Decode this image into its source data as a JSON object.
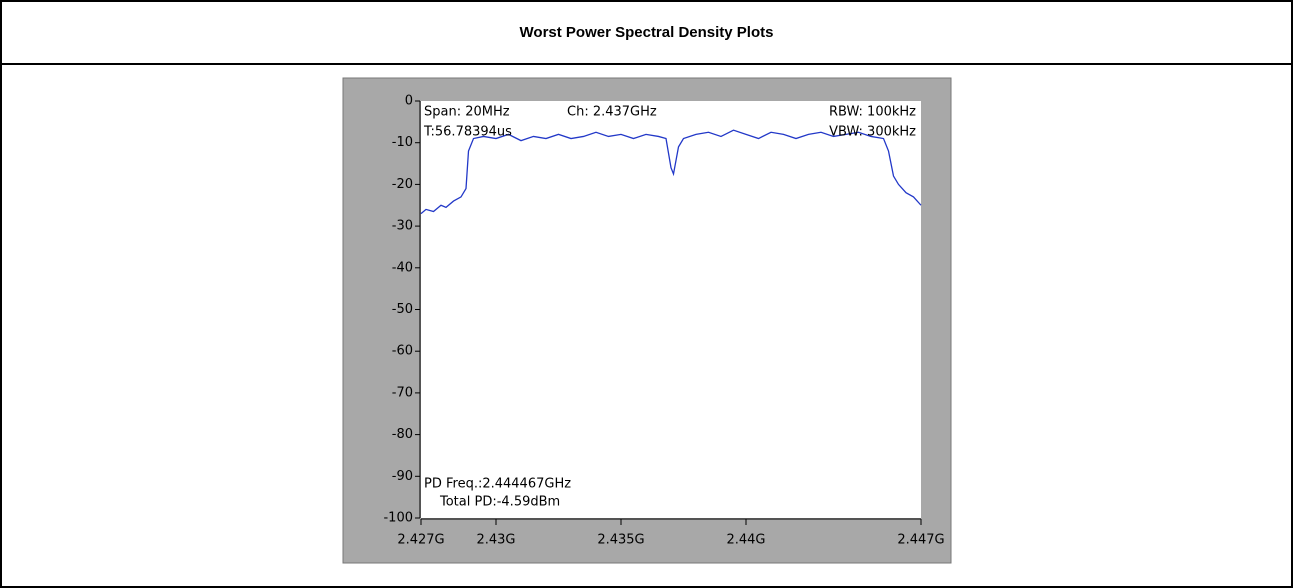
{
  "chart_data": {
    "type": "line",
    "title": "Worst Power Spectral Density Plots",
    "annotations": [
      "Span: 20MHz",
      "Ch: 2.437GHz",
      "RBW: 100kHz",
      "T:56.78394us",
      "VBW: 300kHz",
      "PD Freq.:2.444467GHz",
      "Total PD:-4.59dBm"
    ],
    "x": [
      2.427,
      2.4272,
      2.4275,
      2.4278,
      2.428,
      2.4283,
      2.4286,
      2.4288,
      2.4289,
      2.4291,
      2.4295,
      2.43,
      2.4305,
      2.431,
      2.4315,
      2.432,
      2.4325,
      2.433,
      2.4335,
      2.434,
      2.4345,
      2.435,
      2.4355,
      2.436,
      2.4365,
      2.4368,
      2.437,
      2.4371,
      2.4373,
      2.4375,
      2.438,
      2.4385,
      2.439,
      2.4395,
      2.44,
      2.4405,
      2.441,
      2.4415,
      2.442,
      2.4425,
      2.443,
      2.4435,
      2.444,
      2.4445,
      2.445,
      2.4455,
      2.4457,
      2.4459,
      2.4461,
      2.4464,
      2.4467,
      2.447
    ],
    "values": [
      -27,
      -26,
      -26.5,
      -25,
      -25.5,
      -24,
      -23,
      -21,
      -12,
      -9,
      -8.5,
      -9,
      -8,
      -9.5,
      -8.5,
      -9,
      -8,
      -9,
      -8.5,
      -7.5,
      -8.5,
      -8,
      -9,
      -8,
      -8.5,
      -9,
      -16,
      -17.5,
      -11,
      -9,
      -8,
      -7.5,
      -8.5,
      -7,
      -8,
      -9,
      -7.5,
      -8,
      -9,
      -8,
      -7.5,
      -8.5,
      -8,
      -7.5,
      -8.5,
      -9,
      -12,
      -18,
      -20,
      -22,
      -23,
      -25
    ],
    "color": "#2238c8",
    "xlim": [
      2.427,
      2.447
    ],
    "xticks": [
      {
        "value": 2.427,
        "label": "2.427G"
      },
      {
        "value": 2.43,
        "label": "2.43G"
      },
      {
        "value": 2.435,
        "label": "2.435G"
      },
      {
        "value": 2.44,
        "label": "2.44G"
      },
      {
        "value": 2.447,
        "label": "2.447G"
      }
    ],
    "ylim": [
      -100,
      0
    ],
    "yticks": [
      0,
      -10,
      -20,
      -30,
      -40,
      -50,
      -60,
      -70,
      -80,
      -90,
      -100
    ]
  }
}
